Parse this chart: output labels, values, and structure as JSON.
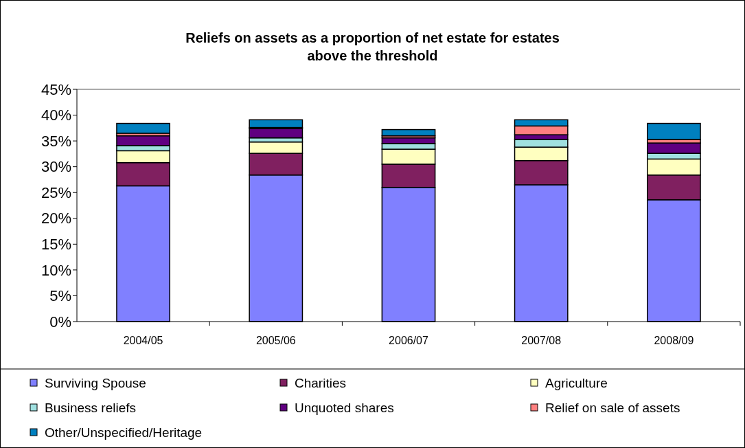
{
  "chart_data": {
    "type": "bar",
    "stacked": true,
    "title": "Reliefs on assets as a proportion of net estate for estates above the threshold",
    "categories": [
      "2004/05",
      "2005/06",
      "2006/07",
      "2007/08",
      "2008/09"
    ],
    "series": [
      {
        "name": "Surviving Spouse",
        "color": "#8080ff",
        "values": [
          26.3,
          28.4,
          26.0,
          26.5,
          23.6
        ]
      },
      {
        "name": "Charities",
        "color": "#802060",
        "values": [
          4.5,
          4.2,
          4.5,
          4.7,
          4.8
        ]
      },
      {
        "name": "Agriculture",
        "color": "#ffffc0",
        "values": [
          2.3,
          2.2,
          2.9,
          2.6,
          3.1
        ]
      },
      {
        "name": "Business reliefs",
        "color": "#a0e0e0",
        "values": [
          1.0,
          0.8,
          1.1,
          1.5,
          1.1
        ]
      },
      {
        "name": "Unquoted shares",
        "color": "#600080",
        "values": [
          1.9,
          1.8,
          1.1,
          0.9,
          2.0
        ]
      },
      {
        "name": "Relief on sale of assets",
        "color": "#ff8080",
        "values": [
          0.5,
          0.2,
          0.4,
          1.7,
          0.7
        ]
      },
      {
        "name": "Other/Unspecified/Heritage",
        "color": "#0080c0",
        "values": [
          1.9,
          1.5,
          1.2,
          1.2,
          3.1
        ]
      }
    ],
    "ylim": [
      0,
      45
    ],
    "yticks": [
      {
        "value": 0,
        "label": "0%"
      },
      {
        "value": 5,
        "label": "5%"
      },
      {
        "value": 10,
        "label": "10%"
      },
      {
        "value": 15,
        "label": "15%"
      },
      {
        "value": 20,
        "label": "20%"
      },
      {
        "value": 25,
        "label": "25%"
      },
      {
        "value": 30,
        "label": "30%"
      },
      {
        "value": 35,
        "label": "35%"
      },
      {
        "value": 40,
        "label": "40%"
      },
      {
        "value": 45,
        "label": "45%"
      }
    ],
    "grid": false,
    "legend": "bottom"
  }
}
